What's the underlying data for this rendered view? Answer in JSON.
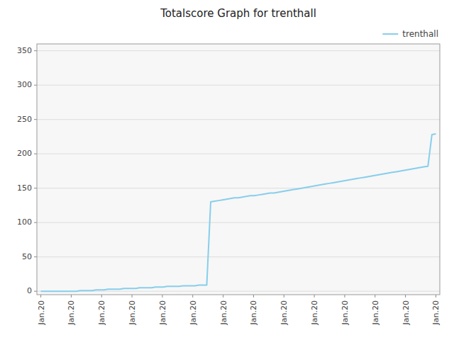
{
  "chart_data": {
    "type": "line",
    "title": "Totalscore Graph for trenthall",
    "x": [
      0,
      1,
      2,
      3,
      4,
      5,
      6,
      7,
      8,
      9,
      10,
      11,
      12,
      13,
      14,
      15,
      16,
      17,
      18,
      19,
      20,
      21,
      22,
      23,
      24,
      25,
      26,
      27,
      28,
      29,
      30,
      31,
      32,
      33,
      34,
      35,
      36,
      37,
      38,
      39,
      40,
      41,
      42,
      43,
      44,
      45,
      46,
      47,
      48,
      49,
      50,
      51,
      52,
      53,
      54,
      55,
      56,
      57,
      58,
      59,
      60,
      61,
      62,
      63,
      64,
      65,
      66,
      67,
      68,
      69,
      70,
      71,
      72,
      73,
      74,
      75,
      76,
      77,
      78,
      79,
      80,
      81,
      82,
      83,
      84,
      85,
      86,
      87,
      88,
      89,
      90,
      91,
      92,
      93,
      94,
      95,
      96,
      97,
      98,
      99,
      100
    ],
    "series": [
      {
        "name": "trenthall",
        "color": "#87CEEB",
        "values": [
          0,
          0,
          0,
          0,
          0,
          0,
          0,
          0,
          0,
          0,
          1,
          1,
          1,
          1,
          2,
          2,
          2,
          3,
          3,
          3,
          3,
          4,
          4,
          4,
          4,
          5,
          5,
          5,
          5,
          6,
          6,
          6,
          7,
          7,
          7,
          7,
          8,
          8,
          8,
          8,
          9,
          9,
          9,
          130,
          131,
          132,
          133,
          134,
          135,
          136,
          136,
          137,
          138,
          139,
          139,
          140,
          141,
          142,
          143,
          143,
          144,
          145,
          146,
          147,
          148,
          149,
          150,
          151,
          152,
          153,
          154,
          155,
          156,
          157,
          158,
          159,
          160,
          161,
          162,
          163,
          164,
          165,
          166,
          167,
          168,
          169,
          170,
          171,
          172,
          173,
          174,
          175,
          176,
          177,
          178,
          179,
          180,
          181,
          182,
          228,
          229
        ]
      }
    ],
    "xlim": [
      -1,
      101
    ],
    "xticks": [
      {
        "value": 0,
        "label": "Jan.20"
      },
      {
        "value": 7.6923076923076925,
        "label": "Jan.20"
      },
      {
        "value": 15.384615384615385,
        "label": "Jan.20"
      },
      {
        "value": 23.076923076923077,
        "label": "Jan.20"
      },
      {
        "value": 30.76923076923077,
        "label": "Jan.20"
      },
      {
        "value": 38.46153846153846,
        "label": "Jan.20"
      },
      {
        "value": 46.15384615384615,
        "label": "Jan.20"
      },
      {
        "value": 53.84615384615385,
        "label": "Jan.20"
      },
      {
        "value": 61.53846153846154,
        "label": "Jan.20"
      },
      {
        "value": 69.23076923076923,
        "label": "Jan.20"
      },
      {
        "value": 76.92307692307692,
        "label": "Jan.20"
      },
      {
        "value": 84.61538461538461,
        "label": "Jan.20"
      },
      {
        "value": 92.3076923076923,
        "label": "Jan.20"
      },
      {
        "value": 100,
        "label": "Jan.20"
      }
    ],
    "ylim": [
      -5,
      360
    ],
    "yticks": [
      0,
      50,
      100,
      150,
      200,
      250,
      300,
      350
    ],
    "grid": true,
    "legend": "upper right"
  }
}
